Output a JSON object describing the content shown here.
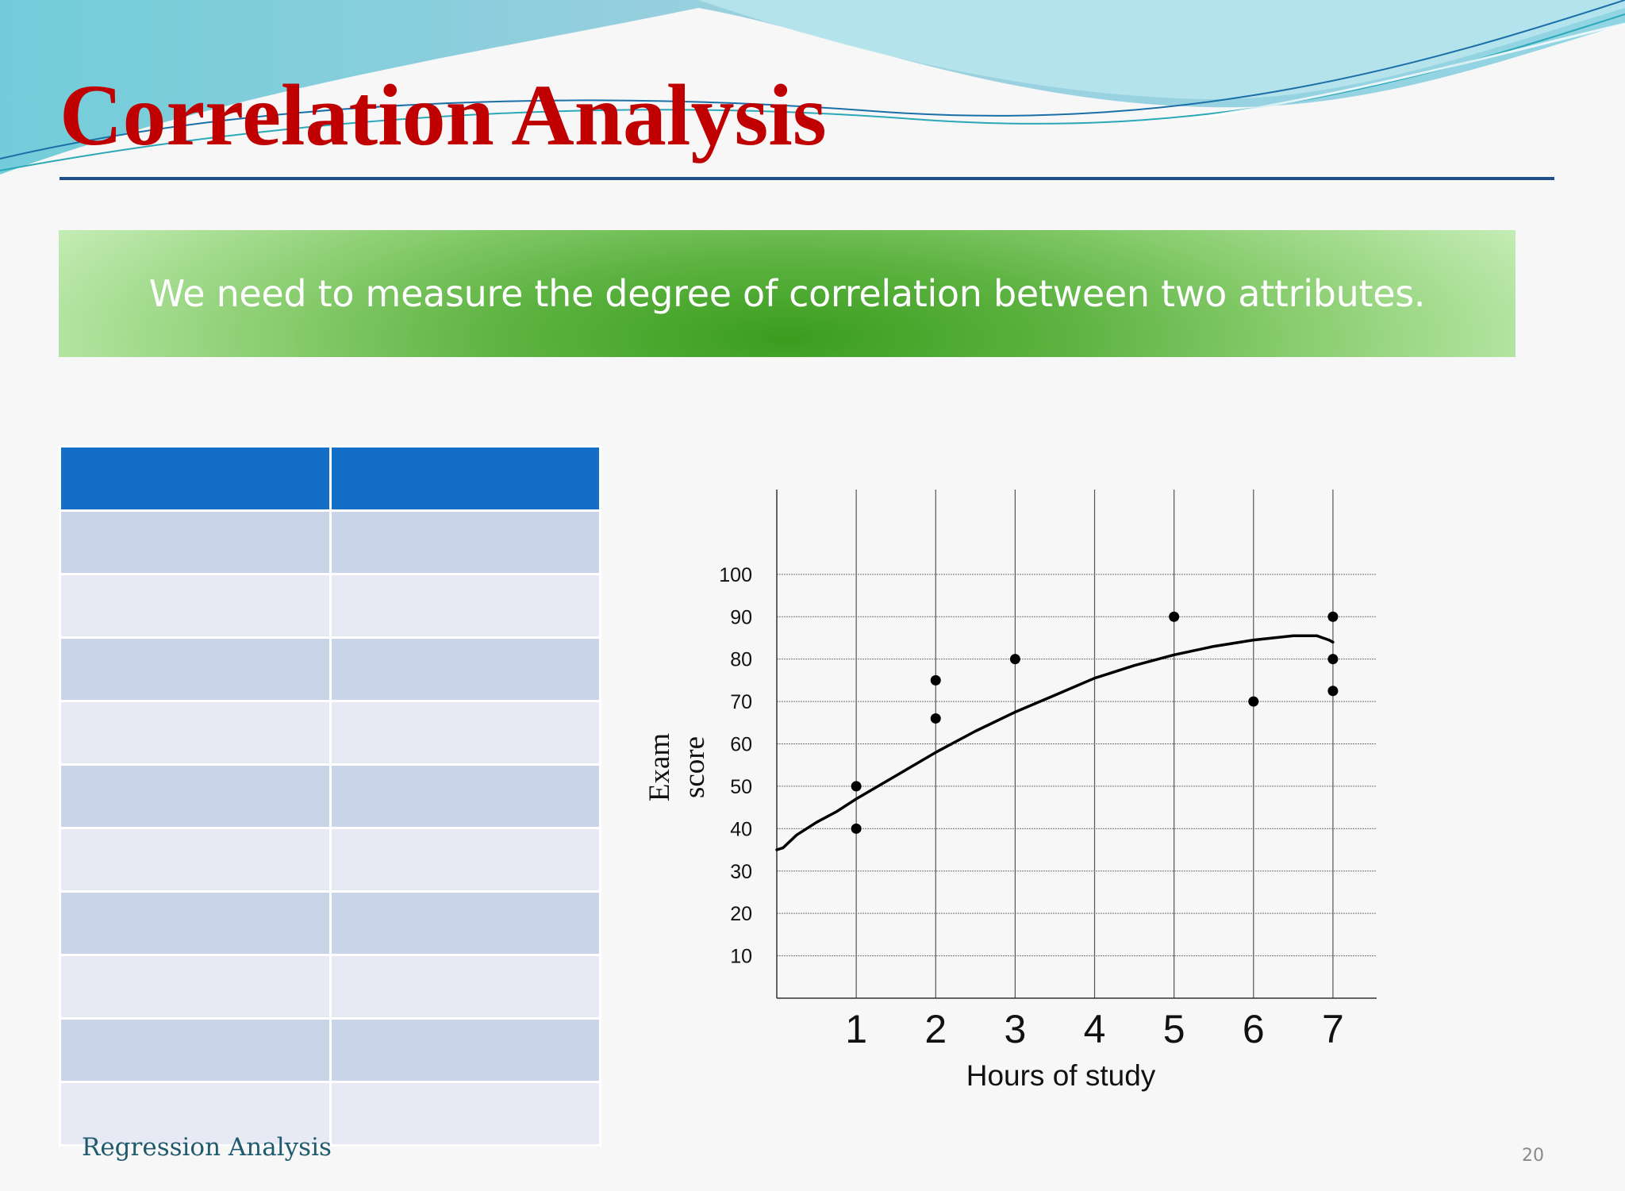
{
  "slide": {
    "title": "Correlation Analysis",
    "banner_text": "We need to measure the degree of correlation between two attributes.",
    "footer_label": "Regression Analysis",
    "page_number": "20"
  },
  "table": {
    "header": [
      "",
      ""
    ],
    "rows": [
      [
        "",
        ""
      ],
      [
        "",
        ""
      ],
      [
        "",
        ""
      ],
      [
        "",
        ""
      ],
      [
        "",
        ""
      ],
      [
        "",
        ""
      ],
      [
        "",
        ""
      ],
      [
        "",
        ""
      ],
      [
        "",
        ""
      ],
      [
        "",
        ""
      ]
    ]
  },
  "colors": {
    "title": "#c00000",
    "table_header": "#136ec8",
    "table_row_dark": "#cad4e9",
    "table_row_light": "#e7eaf4",
    "banner_center": "#3a9d1e"
  },
  "chart_data": {
    "type": "scatter",
    "title": "",
    "xlabel": "Hours of study",
    "ylabel_lines": [
      "Exam",
      "score"
    ],
    "x_ticks": [
      1,
      2,
      3,
      4,
      5,
      6,
      7
    ],
    "y_ticks": [
      10,
      20,
      30,
      40,
      50,
      60,
      70,
      80,
      90,
      100
    ],
    "xlim": [
      0,
      7.55
    ],
    "ylim": [
      0,
      120
    ],
    "grid": true,
    "points": [
      {
        "x": 1,
        "y": 50
      },
      {
        "x": 1,
        "y": 40
      },
      {
        "x": 2,
        "y": 75
      },
      {
        "x": 2,
        "y": 66
      },
      {
        "x": 3,
        "y": 80
      },
      {
        "x": 5,
        "y": 90
      },
      {
        "x": 6,
        "y": 70
      },
      {
        "x": 7,
        "y": 90
      },
      {
        "x": 7,
        "y": 80
      },
      {
        "x": 7,
        "y": 72.5
      }
    ],
    "trend_line": [
      {
        "x": 0,
        "y": 35
      },
      {
        "x": 0.08,
        "y": 35.5
      },
      {
        "x": 0.25,
        "y": 38.5
      },
      {
        "x": 0.5,
        "y": 41.5
      },
      {
        "x": 0.75,
        "y": 44
      },
      {
        "x": 1,
        "y": 47
      },
      {
        "x": 1.5,
        "y": 52.5
      },
      {
        "x": 2,
        "y": 58
      },
      {
        "x": 2.5,
        "y": 63
      },
      {
        "x": 3,
        "y": 67.5
      },
      {
        "x": 3.5,
        "y": 71.5
      },
      {
        "x": 4,
        "y": 75.5
      },
      {
        "x": 4.5,
        "y": 78.5
      },
      {
        "x": 5,
        "y": 81
      },
      {
        "x": 5.5,
        "y": 83
      },
      {
        "x": 6,
        "y": 84.5
      },
      {
        "x": 6.5,
        "y": 85.5
      },
      {
        "x": 6.8,
        "y": 85.5
      },
      {
        "x": 6.95,
        "y": 84.5
      },
      {
        "x": 7,
        "y": 84
      }
    ]
  }
}
